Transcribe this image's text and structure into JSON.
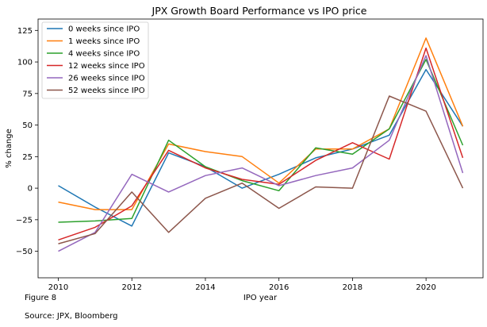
{
  "chart_data": {
    "type": "line",
    "title": "JPX Growth Board Performance vs IPO price",
    "xlabel": "IPO year",
    "ylabel": "% change",
    "x": [
      2010,
      2011,
      2012,
      2013,
      2014,
      2015,
      2016,
      2017,
      2018,
      2019,
      2020,
      2021
    ],
    "xlim": [
      2009.45,
      2021.55
    ],
    "ylim": [
      -71,
      134
    ],
    "xticks": [
      "2010",
      "2012",
      "2014",
      "2016",
      "2018",
      "2020"
    ],
    "yticks": [
      "−50",
      "−25",
      "0",
      "25",
      "50",
      "75",
      "100",
      "125"
    ],
    "grid": false,
    "legend_position": "top-left",
    "series": [
      {
        "name": "0 weeks since IPO",
        "color": "#1f77b4",
        "values": [
          2,
          -15,
          -30,
          28,
          17,
          0,
          11,
          24,
          31,
          42,
          94,
          49
        ]
      },
      {
        "name": "1 weeks since IPO",
        "color": "#ff7f0e",
        "values": [
          -11,
          -17,
          -17,
          35,
          29,
          25,
          4,
          31,
          31,
          47,
          119,
          49
        ]
      },
      {
        "name": "4 weeks since IPO",
        "color": "#2ca02c",
        "values": [
          -27,
          -26,
          -24,
          38,
          17,
          6,
          -2,
          32,
          27,
          47,
          102,
          34
        ]
      },
      {
        "name": "12 weeks since IPO",
        "color": "#d62728",
        "values": [
          -41,
          -31,
          -14,
          30,
          16,
          7,
          3,
          22,
          36,
          23,
          111,
          24
        ]
      },
      {
        "name": "26 weeks since IPO",
        "color": "#9467bd",
        "values": [
          -50,
          -35,
          11,
          -3,
          10,
          16,
          2,
          10,
          16,
          38,
          105,
          12
        ]
      },
      {
        "name": "52 weeks since IPO",
        "color": "#8c564b",
        "values": [
          -44,
          -36,
          -3,
          -35,
          -8,
          4,
          -16,
          1,
          0,
          73,
          61,
          0
        ]
      }
    ]
  },
  "figure_label": "Figure 8",
  "source_label": "Source: JPX, Bloomberg"
}
